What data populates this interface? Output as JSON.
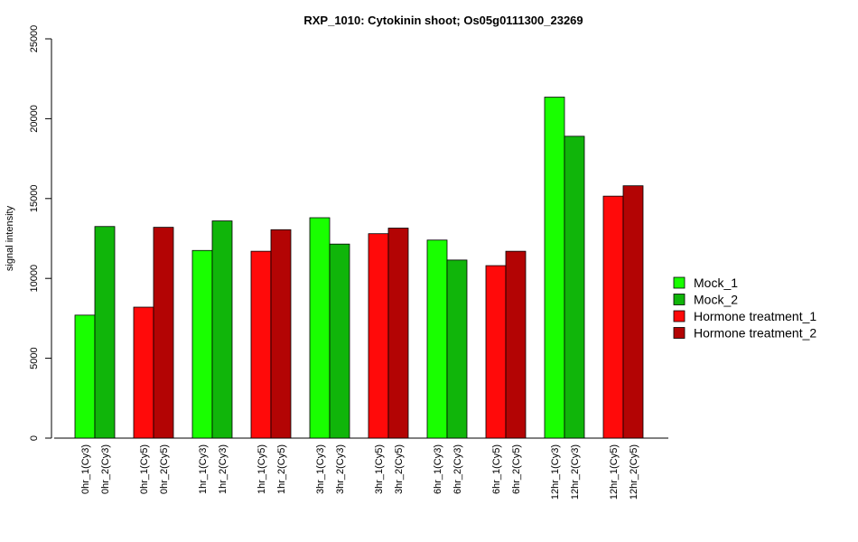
{
  "chart_data": {
    "type": "bar",
    "title": "RXP_1010: Cytokinin shoot; Os05g0111300_23269",
    "xlabel": "",
    "ylabel": "signal intensity",
    "ylim": [
      0,
      25000
    ],
    "yticks": [
      "0",
      "5000",
      "10000",
      "15000",
      "20000",
      "25000"
    ],
    "grid": false,
    "legend_position": "right",
    "categories": [
      "0hr_1(Cy3)",
      "0hr_2(Cy3)",
      "0hr_1(Cy5)",
      "0hr_2(Cy5)",
      "1hr_1(Cy3)",
      "1hr_2(Cy3)",
      "1hr_1(Cy5)",
      "1hr_2(Cy5)",
      "3hr_1(Cy3)",
      "3hr_2(Cy3)",
      "3hr_1(Cy5)",
      "3hr_2(Cy5)",
      "6hr_1(Cy3)",
      "6hr_2(Cy3)",
      "6hr_1(Cy5)",
      "6hr_2(Cy5)",
      "12hr_1(Cy3)",
      "12hr_2(Cy3)",
      "12hr_1(Cy5)",
      "12hr_2(Cy5)"
    ],
    "values": [
      7700,
      13250,
      8200,
      13200,
      11750,
      13600,
      11700,
      13050,
      13800,
      12150,
      12800,
      13150,
      12400,
      11150,
      10800,
      11700,
      21350,
      18900,
      15150,
      15800
    ],
    "bar_series": [
      0,
      1,
      2,
      3,
      0,
      1,
      2,
      3,
      0,
      1,
      2,
      3,
      0,
      1,
      2,
      3,
      0,
      1,
      2,
      3
    ],
    "series": [
      {
        "name": "Mock_1",
        "color": "#19FF00"
      },
      {
        "name": "Mock_2",
        "color": "#10B50A"
      },
      {
        "name": "Hormone treatment_1",
        "color": "#FF0A0A"
      },
      {
        "name": "Hormone treatment_2",
        "color": "#B30404"
      }
    ]
  }
}
